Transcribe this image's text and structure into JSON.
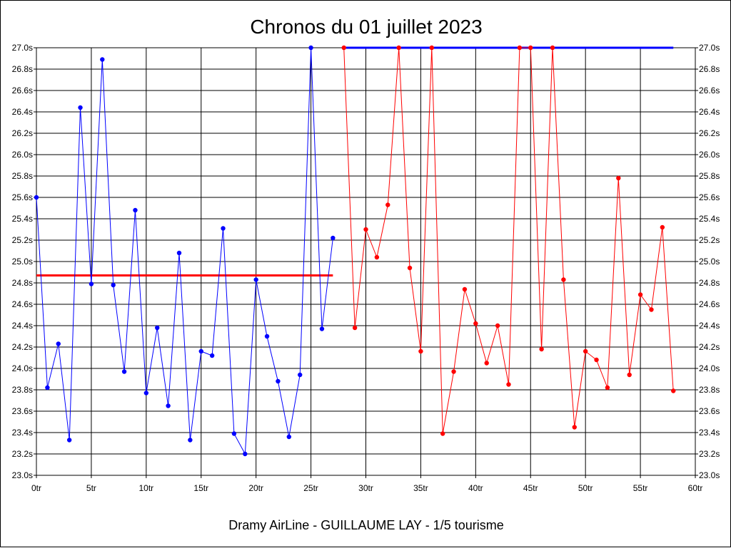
{
  "title": "Chronos du 01 juillet 2023",
  "footer": "Dramy AirLine - GUILLAUME LAY - 1/5 tourisme",
  "chart_data": {
    "type": "line",
    "title": "Chronos du 01 juillet 2023",
    "xlabel": "",
    "ylabel": "",
    "xlim": [
      0,
      60
    ],
    "ylim": [
      23.0,
      27.0
    ],
    "x_ticks": [
      0,
      5,
      10,
      15,
      20,
      25,
      30,
      35,
      40,
      45,
      50,
      55,
      60
    ],
    "x_tick_labels": [
      "0tr",
      "5tr",
      "10tr",
      "15tr",
      "20tr",
      "25tr",
      "30tr",
      "35tr",
      "40tr",
      "45tr",
      "50tr",
      "55tr",
      "60tr"
    ],
    "y_ticks": [
      23.0,
      23.2,
      23.4,
      23.6,
      23.8,
      24.0,
      24.2,
      24.4,
      24.6,
      24.8,
      25.0,
      25.2,
      25.4,
      25.6,
      25.8,
      26.0,
      26.2,
      26.4,
      26.6,
      26.8,
      27.0
    ],
    "y_tick_labels": [
      "23.0s",
      "23.2s",
      "23.4s",
      "23.6s",
      "23.8s",
      "24.0s",
      "24.2s",
      "24.4s",
      "24.6s",
      "24.8s",
      "25.0s",
      "25.2s",
      "25.4s",
      "25.6s",
      "25.8s",
      "26.0s",
      "26.2s",
      "26.4s",
      "26.6s",
      "26.8s",
      "27.0s"
    ],
    "grid": true,
    "series": [
      {
        "color": "#0000ff",
        "x": [
          0,
          1,
          2,
          3,
          4,
          5,
          6,
          7,
          8,
          9,
          10,
          11,
          12,
          13,
          14,
          15,
          16,
          17,
          18,
          19,
          20,
          21,
          22,
          23,
          24,
          25,
          26,
          27
        ],
        "y": [
          25.6,
          23.82,
          24.23,
          23.33,
          26.44,
          24.79,
          26.89,
          24.78,
          23.97,
          25.48,
          23.77,
          24.38,
          23.65,
          25.08,
          23.33,
          24.16,
          24.12,
          25.31,
          23.39,
          23.2,
          24.83,
          24.3,
          23.88,
          23.36,
          23.94,
          27.0,
          24.37,
          25.22
        ]
      },
      {
        "color": "#ff0000",
        "x": [
          28,
          29,
          30,
          31,
          32,
          33,
          34,
          35,
          36,
          37,
          38,
          39,
          40,
          41,
          42,
          43,
          44,
          45,
          46,
          47,
          48,
          49,
          50,
          51,
          52,
          53,
          54,
          55,
          56,
          57,
          58
        ],
        "y": [
          27.0,
          24.38,
          25.3,
          25.04,
          25.53,
          27.0,
          24.94,
          24.16,
          27.0,
          23.39,
          23.97,
          24.74,
          24.42,
          24.05,
          24.4,
          23.85,
          27.0,
          27.0,
          24.18,
          27.0,
          24.83,
          23.45,
          24.16,
          24.08,
          23.82,
          25.78,
          23.94,
          24.69,
          24.55,
          25.32,
          23.79
        ]
      }
    ],
    "reference_lines": [
      {
        "color": "#ff0000",
        "x": [
          0,
          27
        ],
        "y": 24.87
      },
      {
        "color": "#0000ff",
        "x": [
          28,
          58
        ],
        "y": 27.0
      }
    ]
  }
}
